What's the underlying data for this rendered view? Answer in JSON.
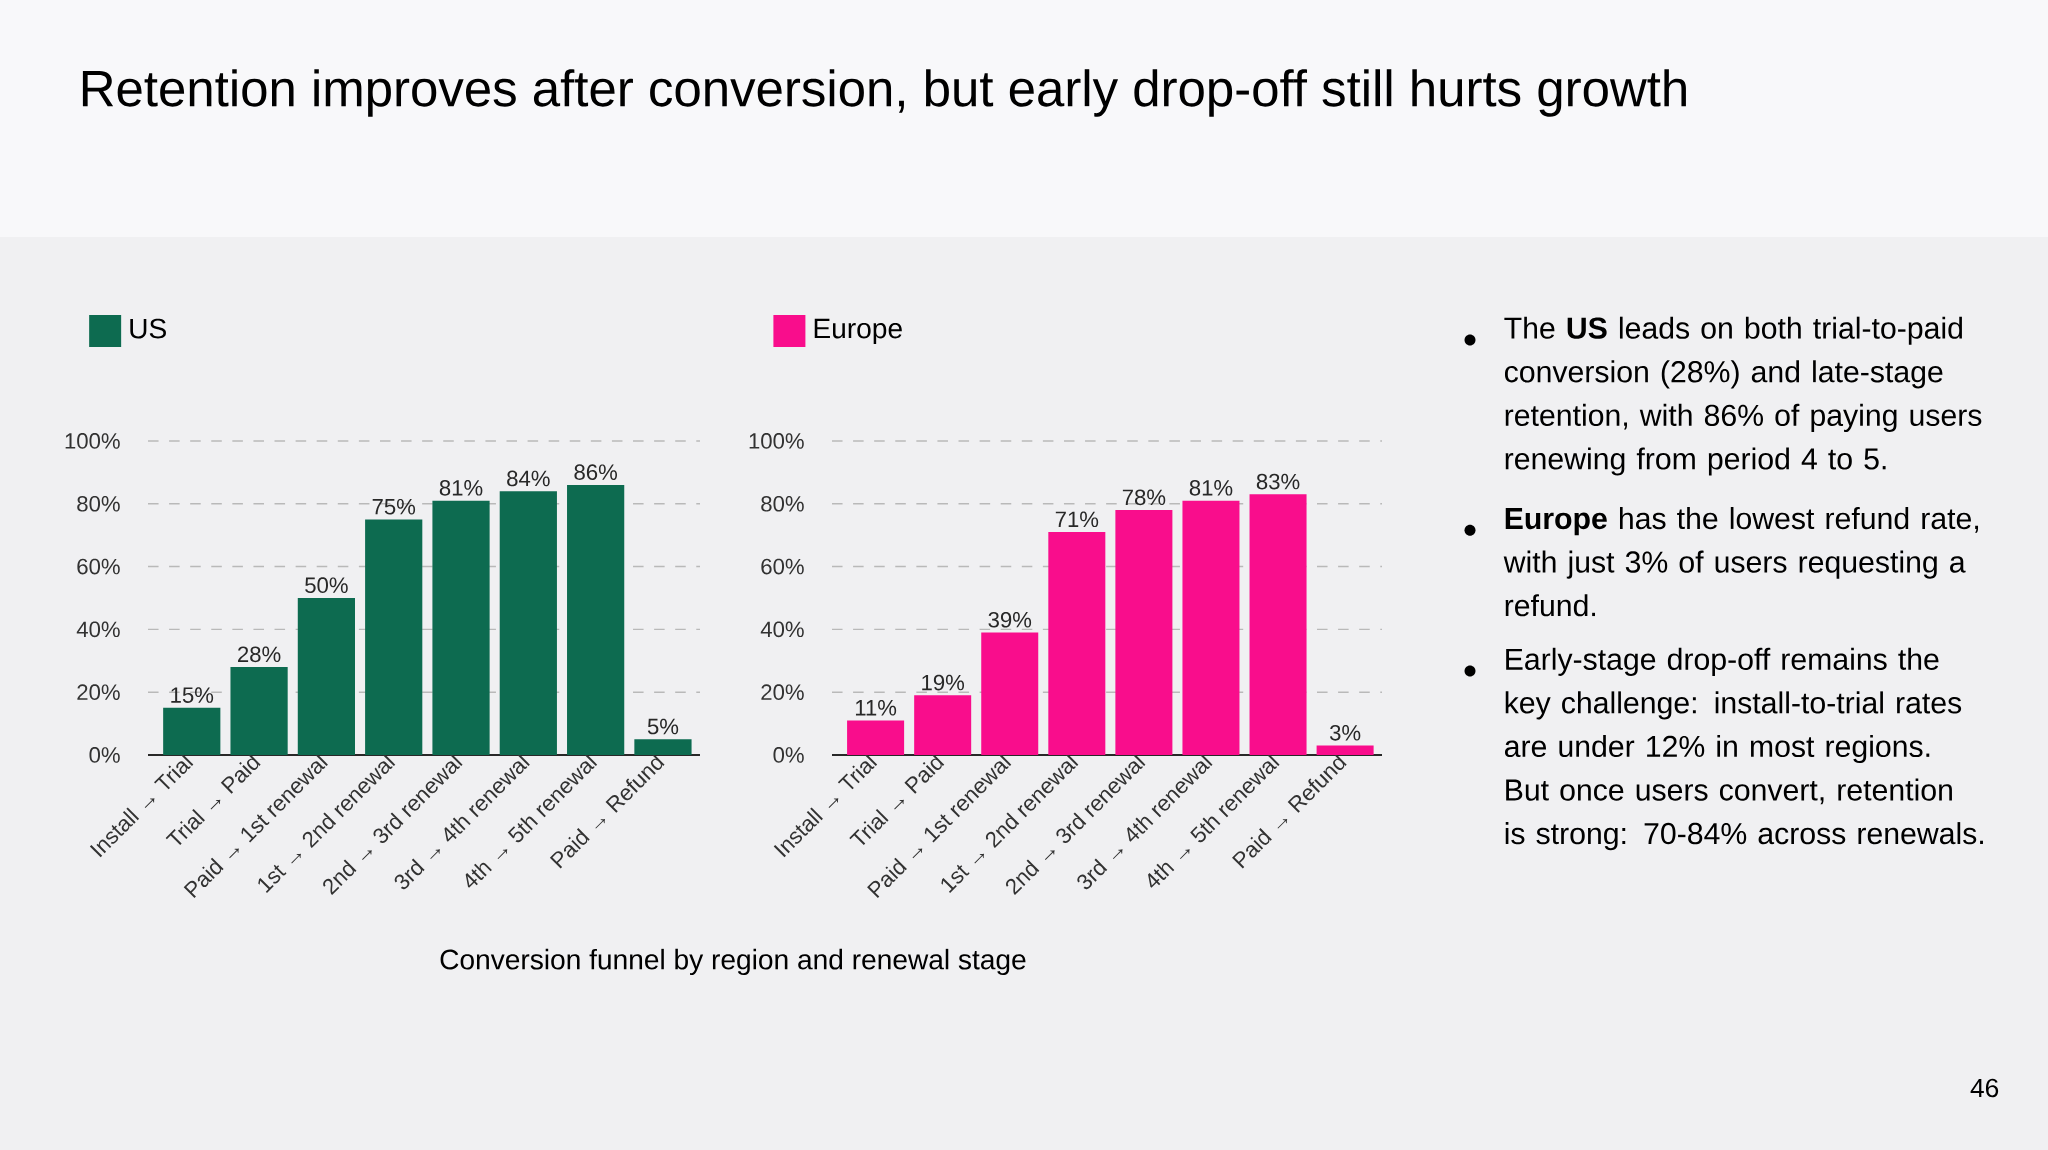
{
  "chart_data": [
    {
      "type": "bar",
      "title": "Retention improves after conversion, but early drop-off still hurts growth",
      "categories": [
        "Install → Trial",
        "Trial → Paid",
        "Paid → 1st renewal",
        "1st → 2nd renewal",
        "2nd → 3rd renewal",
        "3rd → 4th renewal",
        "4th → 5th renewal",
        "Paid → Refund"
      ],
      "series": [
        {
          "name": "US",
          "color": "#0d6b50",
          "values": [
            15,
            28,
            50,
            75,
            81,
            84,
            86,
            5
          ],
          "value_labels": [
            "15%",
            "28%",
            "50%",
            "75%",
            "81%",
            "84%",
            "86%",
            "5%"
          ]
        }
      ],
      "ylim": [
        0,
        100
      ],
      "yticks": [
        {
          "value": 0,
          "label": "0%"
        },
        {
          "value": 20,
          "label": "20%"
        },
        {
          "value": 40,
          "label": "40%"
        },
        {
          "value": 60,
          "label": "60%"
        },
        {
          "value": 80,
          "label": "80%"
        },
        {
          "value": 100,
          "label": "100%"
        }
      ],
      "grid": "y",
      "legend": "top left",
      "annotations": [
        "Conversion funnel by region and renewal stage"
      ]
    },
    {
      "type": "bar",
      "categories": [
        "Install → Trial",
        "Trial → Paid",
        "Paid → 1st renewal",
        "1st → 2nd renewal",
        "2nd → 3rd renewal",
        "3rd → 4th renewal",
        "4th → 5th renewal",
        "Paid → Refund"
      ],
      "series": [
        {
          "name": "Europe",
          "color": "#f90d8c",
          "values": [
            11,
            19,
            39,
            71,
            78,
            81,
            83,
            3
          ],
          "value_labels": [
            "11%",
            "19%",
            "39%",
            "71%",
            "78%",
            "81%",
            "83%",
            "3%"
          ]
        }
      ],
      "ylim": [
        0,
        100
      ],
      "yticks": [
        {
          "value": 0,
          "label": "0%"
        },
        {
          "value": 20,
          "label": "20%"
        },
        {
          "value": 40,
          "label": "40%"
        },
        {
          "value": 60,
          "label": "60%"
        },
        {
          "value": 80,
          "label": "80%"
        },
        {
          "value": 100,
          "label": "100%"
        }
      ],
      "grid": "y",
      "legend": "top left"
    },
    {
      "type": "other",
      "annotations": [
        "The **US** leads on both trial-to-paid conversion (28%) and late-stage retention, with 86% of paying users renewing from period 4 to 5.",
        "**Europe** has the lowest refund rate, with just 3% of users requesting a refund.",
        "Early-stage drop-off remains the key challenge: install-to-trial rates are under 12% in most regions. But once users convert, retention is strong: 70-84% across renewals.",
        "46"
      ]
    }
  ]
}
